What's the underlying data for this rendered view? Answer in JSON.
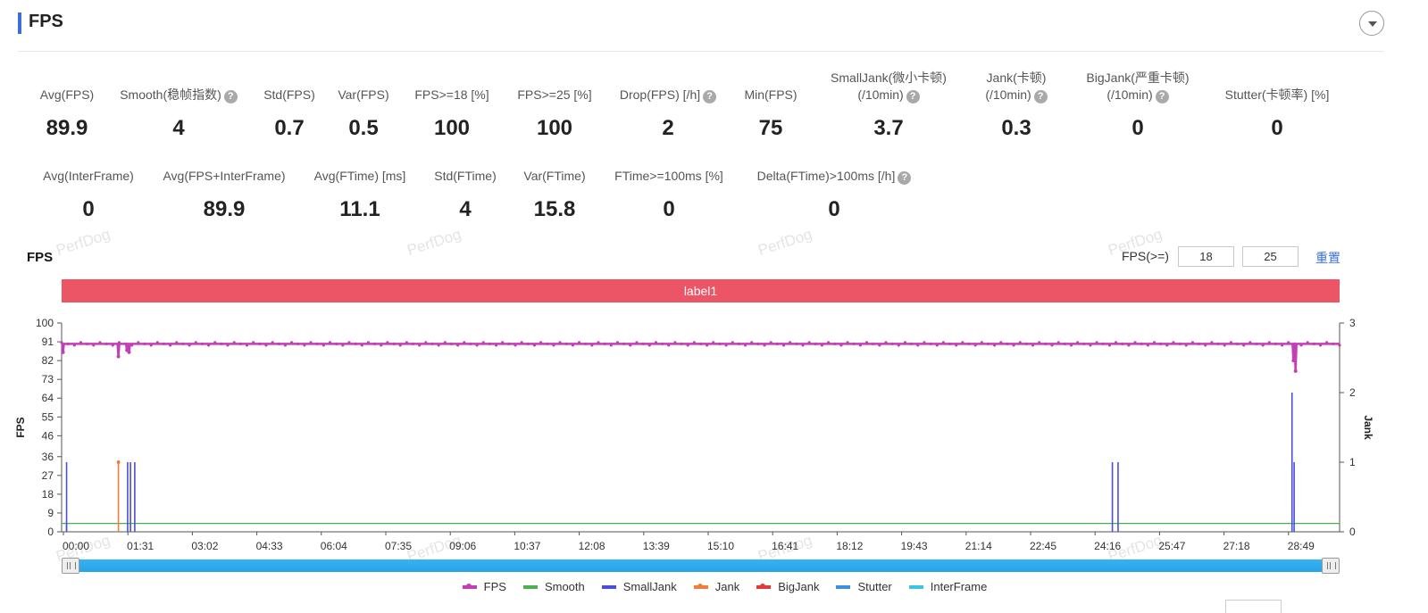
{
  "header": {
    "title": "FPS"
  },
  "metrics_row1": [
    {
      "label": "Avg(FPS)",
      "value": "89.9",
      "help": false
    },
    {
      "label": "Smooth(稳帧指数)",
      "value": "4",
      "help": true
    },
    {
      "label": "Std(FPS)",
      "value": "0.7",
      "help": false
    },
    {
      "label": "Var(FPS)",
      "value": "0.5",
      "help": false
    },
    {
      "label": "FPS>=18 [%]",
      "value": "100",
      "help": false
    },
    {
      "label": "FPS>=25 [%]",
      "value": "100",
      "help": false
    },
    {
      "label": "Drop(FPS) [/h]",
      "value": "2",
      "help": true
    },
    {
      "label": "Min(FPS)",
      "value": "75",
      "help": false
    },
    {
      "label": "SmallJank(微小卡顿)",
      "label2": "(/10min)",
      "value": "3.7",
      "help": true
    },
    {
      "label": "Jank(卡顿)",
      "label2": "(/10min)",
      "value": "0.3",
      "help": true
    },
    {
      "label": "BigJank(严重卡顿)",
      "label2": "(/10min)",
      "value": "0",
      "help": true
    },
    {
      "label": "Stutter(卡顿率) [%]",
      "value": "0",
      "help": false
    }
  ],
  "metrics_row2": [
    {
      "label": "Avg(InterFrame)",
      "value": "0",
      "help": false
    },
    {
      "label": "Avg(FPS+InterFrame)",
      "value": "89.9",
      "help": false
    },
    {
      "label": "Avg(FTime) [ms]",
      "value": "11.1",
      "help": false
    },
    {
      "label": "Std(FTime)",
      "value": "4",
      "help": false
    },
    {
      "label": "Var(FTime)",
      "value": "15.8",
      "help": false
    },
    {
      "label": "FTime>=100ms [%]",
      "value": "0",
      "help": false
    },
    {
      "label": "Delta(FTime)>100ms [/h]",
      "value": "0",
      "help": true
    }
  ],
  "watermark": "PerfDog",
  "toolbar": {
    "chart_title": "FPS",
    "threshold_label": "FPS(>=)",
    "threshold_1": "18",
    "threshold_2": "25",
    "reset_label": "重置"
  },
  "label_bar": "label1",
  "colors": {
    "FPS": "#c33fb5",
    "Smooth": "#4caf50",
    "SmallJank": "#4a4fd6",
    "Jank": "#f07d3b",
    "BigJank": "#e03a3a",
    "Stutter": "#3f8ee0",
    "InterFrame": "#3cc4e0",
    "label_bar": "#ec5565"
  },
  "chart_data": {
    "type": "line",
    "title": "",
    "xlabel": "",
    "ylabel": "FPS",
    "y2label": "Jank",
    "x_ticks": [
      "00:00",
      "01:31",
      "03:02",
      "04:33",
      "06:04",
      "07:35",
      "09:06",
      "10:37",
      "12:08",
      "13:39",
      "15:10",
      "16:41",
      "18:12",
      "19:43",
      "21:14",
      "22:45",
      "24:16",
      "25:47",
      "27:18",
      "28:49"
    ],
    "x_range_seconds": [
      0,
      1800
    ],
    "ylim": [
      0,
      100
    ],
    "y_ticks": [
      0,
      9,
      18,
      27,
      36,
      46,
      55,
      64,
      73,
      82,
      91,
      100
    ],
    "y2lim": [
      0,
      3
    ],
    "y2_ticks": [
      0,
      1,
      2,
      3
    ],
    "grid": false,
    "legend": "bottom-center",
    "series": [
      {
        "name": "FPS",
        "axis": "left",
        "baseline": 90,
        "dips": [
          [
            2,
            86
          ],
          [
            80,
            84
          ],
          [
            92,
            87
          ],
          [
            95,
            86
          ],
          [
            1735,
            82
          ],
          [
            1738,
            77
          ]
        ]
      },
      {
        "name": "Smooth",
        "axis": "left",
        "baseline": 4
      },
      {
        "name": "SmallJank",
        "axis": "right",
        "spikes": [
          [
            7,
            1
          ],
          [
            93,
            1
          ],
          [
            97,
            1
          ],
          [
            103,
            1
          ],
          [
            1480,
            1
          ],
          [
            1488,
            1
          ],
          [
            1733,
            2
          ],
          [
            1736,
            1
          ]
        ]
      },
      {
        "name": "Jank",
        "axis": "right",
        "spikes": [
          [
            80,
            1
          ]
        ]
      },
      {
        "name": "BigJank",
        "axis": "right",
        "spikes": []
      },
      {
        "name": "Stutter",
        "axis": "left",
        "spikes": [
          [
            7,
            4
          ]
        ]
      },
      {
        "name": "InterFrame",
        "axis": "left",
        "baseline": 0
      }
    ]
  }
}
